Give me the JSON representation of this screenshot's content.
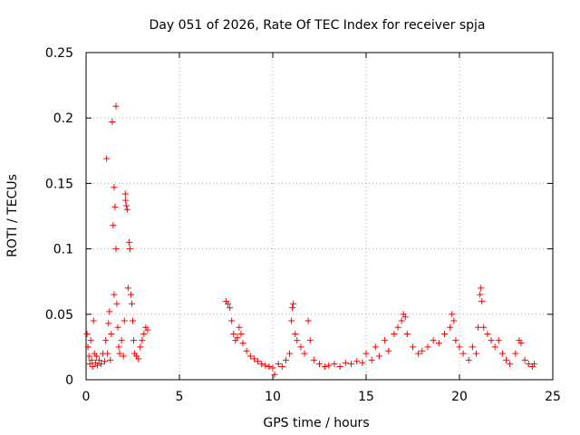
{
  "chart_data": {
    "type": "scatter",
    "title": "Day 051 of 2026, Rate Of TEC Index for receiver spja",
    "xlabel": "GPS time / hours",
    "ylabel": "ROTI / TECUs",
    "xlim": [
      0,
      25
    ],
    "ylim": [
      0,
      0.25
    ],
    "xticks": [
      0,
      5,
      10,
      15,
      20,
      25
    ],
    "yticks": [
      0,
      0.05,
      0.1,
      0.15,
      0.2,
      0.25
    ],
    "xtick_labels": [
      "0",
      "5",
      "10",
      "15",
      "20",
      "25"
    ],
    "ytick_labels": [
      "0",
      "0.05",
      "0.1",
      "0.15",
      "0.2",
      "0.25"
    ],
    "grid": true,
    "marker": "+",
    "color": "#ff0000",
    "series": [
      {
        "name": "ROTI",
        "points": [
          [
            0.05,
            0.035
          ],
          [
            0.1,
            0.025
          ],
          [
            0.15,
            0.018
          ],
          [
            0.2,
            0.012
          ],
          [
            0.25,
            0.03
          ],
          [
            0.3,
            0.015
          ],
          [
            0.35,
            0.01
          ],
          [
            0.4,
            0.045
          ],
          [
            0.45,
            0.02
          ],
          [
            0.5,
            0.013
          ],
          [
            0.55,
            0.018
          ],
          [
            0.6,
            0.011
          ],
          [
            0.7,
            0.015
          ],
          [
            0.8,
            0.012
          ],
          [
            0.9,
            0.02
          ],
          [
            1.0,
            0.014
          ],
          [
            1.05,
            0.03
          ],
          [
            1.1,
            0.169
          ],
          [
            1.15,
            0.02
          ],
          [
            1.2,
            0.043
          ],
          [
            1.25,
            0.052
          ],
          [
            1.3,
            0.015
          ],
          [
            1.35,
            0.035
          ],
          [
            1.4,
            0.197
          ],
          [
            1.45,
            0.118
          ],
          [
            1.5,
            0.147
          ],
          [
            1.5,
            0.065
          ],
          [
            1.55,
            0.132
          ],
          [
            1.6,
            0.209
          ],
          [
            1.6,
            0.1
          ],
          [
            1.65,
            0.058
          ],
          [
            1.7,
            0.04
          ],
          [
            1.75,
            0.025
          ],
          [
            1.8,
            0.02
          ],
          [
            1.9,
            0.03
          ],
          [
            2.0,
            0.018
          ],
          [
            2.05,
            0.045
          ],
          [
            2.1,
            0.142
          ],
          [
            2.12,
            0.137
          ],
          [
            2.15,
            0.133
          ],
          [
            2.2,
            0.13
          ],
          [
            2.25,
            0.07
          ],
          [
            2.3,
            0.105
          ],
          [
            2.35,
            0.1
          ],
          [
            2.4,
            0.065
          ],
          [
            2.45,
            0.058
          ],
          [
            2.5,
            0.045
          ],
          [
            2.55,
            0.03
          ],
          [
            2.6,
            0.02
          ],
          [
            2.7,
            0.018
          ],
          [
            2.8,
            0.016
          ],
          [
            2.9,
            0.025
          ],
          [
            3.0,
            0.03
          ],
          [
            3.1,
            0.035
          ],
          [
            3.2,
            0.04
          ],
          [
            3.3,
            0.038
          ],
          [
            7.5,
            0.06
          ],
          [
            7.6,
            0.058
          ],
          [
            7.7,
            0.055
          ],
          [
            7.8,
            0.045
          ],
          [
            7.9,
            0.035
          ],
          [
            8.0,
            0.03
          ],
          [
            8.1,
            0.032
          ],
          [
            8.2,
            0.04
          ],
          [
            8.3,
            0.035
          ],
          [
            8.4,
            0.028
          ],
          [
            8.6,
            0.022
          ],
          [
            8.8,
            0.018
          ],
          [
            9.0,
            0.016
          ],
          [
            9.2,
            0.014
          ],
          [
            9.4,
            0.012
          ],
          [
            9.6,
            0.011
          ],
          [
            9.8,
            0.01
          ],
          [
            10.0,
            0.009
          ],
          [
            10.1,
            0.004
          ],
          [
            10.3,
            0.012
          ],
          [
            10.5,
            0.01
          ],
          [
            10.7,
            0.015
          ],
          [
            10.9,
            0.02
          ],
          [
            11.0,
            0.045
          ],
          [
            11.05,
            0.055
          ],
          [
            11.1,
            0.058
          ],
          [
            11.2,
            0.035
          ],
          [
            11.3,
            0.03
          ],
          [
            11.5,
            0.025
          ],
          [
            11.7,
            0.02
          ],
          [
            11.9,
            0.045
          ],
          [
            12.0,
            0.03
          ],
          [
            12.2,
            0.015
          ],
          [
            12.5,
            0.012
          ],
          [
            12.8,
            0.01
          ],
          [
            13.0,
            0.011
          ],
          [
            13.3,
            0.012
          ],
          [
            13.6,
            0.01
          ],
          [
            13.9,
            0.013
          ],
          [
            14.2,
            0.012
          ],
          [
            14.5,
            0.014
          ],
          [
            14.8,
            0.013
          ],
          [
            15.0,
            0.02
          ],
          [
            15.3,
            0.015
          ],
          [
            15.5,
            0.025
          ],
          [
            15.7,
            0.018
          ],
          [
            16.0,
            0.03
          ],
          [
            16.2,
            0.022
          ],
          [
            16.5,
            0.035
          ],
          [
            16.7,
            0.04
          ],
          [
            16.9,
            0.045
          ],
          [
            17.0,
            0.05
          ],
          [
            17.1,
            0.048
          ],
          [
            17.2,
            0.035
          ],
          [
            17.5,
            0.025
          ],
          [
            17.8,
            0.02
          ],
          [
            18.0,
            0.022
          ],
          [
            18.3,
            0.025
          ],
          [
            18.6,
            0.03
          ],
          [
            18.9,
            0.028
          ],
          [
            19.2,
            0.035
          ],
          [
            19.5,
            0.04
          ],
          [
            19.6,
            0.05
          ],
          [
            19.7,
            0.045
          ],
          [
            19.8,
            0.03
          ],
          [
            20.0,
            0.025
          ],
          [
            20.2,
            0.02
          ],
          [
            20.5,
            0.015
          ],
          [
            20.7,
            0.025
          ],
          [
            20.9,
            0.02
          ],
          [
            21.0,
            0.04
          ],
          [
            21.1,
            0.065
          ],
          [
            21.15,
            0.07
          ],
          [
            21.2,
            0.06
          ],
          [
            21.3,
            0.04
          ],
          [
            21.5,
            0.035
          ],
          [
            21.7,
            0.03
          ],
          [
            21.9,
            0.025
          ],
          [
            22.1,
            0.03
          ],
          [
            22.3,
            0.02
          ],
          [
            22.5,
            0.015
          ],
          [
            22.7,
            0.012
          ],
          [
            23.0,
            0.02
          ],
          [
            23.2,
            0.03
          ],
          [
            23.3,
            0.028
          ],
          [
            23.5,
            0.015
          ],
          [
            23.7,
            0.012
          ],
          [
            23.9,
            0.01
          ],
          [
            24.0,
            0.012
          ]
        ]
      }
    ]
  }
}
